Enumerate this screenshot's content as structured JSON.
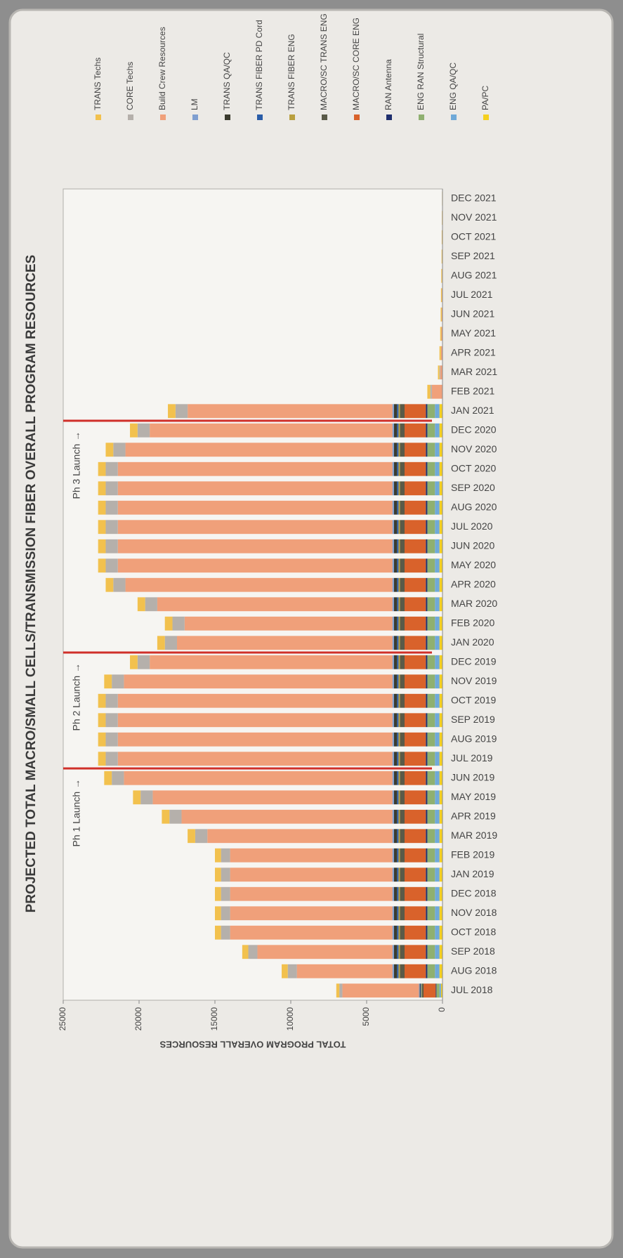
{
  "chart_data": {
    "type": "stacked_bar",
    "title": "PROJECTED TOTAL MACRO/SMALL CELLS/TRANSMISSION FIBER OVERALL PROGRAM RESOURCES",
    "y_label": "TOTAL PROGRAM OVERALL RESOURCES",
    "categories": [
      "JUL 2018",
      "AUG 2018",
      "SEP 2018",
      "OCT 2018",
      "NOV 2018",
      "DEC 2018",
      "JAN 2019",
      "FEB 2019",
      "MAR 2019",
      "APR 2019",
      "MAY 2019",
      "JUN 2019",
      "JUL 2019",
      "AUG 2019",
      "SEP 2019",
      "OCT 2019",
      "NOV 2019",
      "DEC 2019",
      "JAN 2020",
      "FEB 2020",
      "MAR 2020",
      "APR 2020",
      "MAY 2020",
      "JUN 2020",
      "JUL 2020",
      "AUG 2020",
      "SEP 2020",
      "OCT 2020",
      "NOV 2020",
      "DEC 2020",
      "JAN 2021",
      "FEB 2021",
      "MAR 2021",
      "APR 2021",
      "MAY 2021",
      "JUN 2021",
      "JUL 2021",
      "AUG 2021",
      "SEP 2021",
      "OCT 2021",
      "NOV 2021",
      "DEC 2021"
    ],
    "series": [
      {
        "name": "TRANS Techs",
        "color": "#f2c14e",
        "values": [
          200,
          400,
          400,
          400,
          400,
          400,
          400,
          400,
          500,
          500,
          500,
          500,
          500,
          500,
          500,
          500,
          500,
          500,
          500,
          500,
          500,
          500,
          500,
          500,
          500,
          500,
          500,
          500,
          500,
          500,
          500,
          200,
          100,
          100,
          80,
          70,
          60,
          50,
          40,
          30,
          20,
          20
        ]
      },
      {
        "name": "CORE Techs",
        "color": "#b5b0ab",
        "values": [
          200,
          600,
          600,
          600,
          600,
          600,
          600,
          600,
          800,
          800,
          800,
          800,
          800,
          800,
          800,
          800,
          800,
          800,
          800,
          800,
          800,
          800,
          800,
          800,
          800,
          800,
          800,
          800,
          800,
          800,
          800,
          100,
          50,
          0,
          0,
          0,
          0,
          0,
          0,
          0,
          0,
          0
        ]
      },
      {
        "name": "Build Crew Resources",
        "color": "#f0a07a",
        "values": [
          5050,
          6300,
          8900,
          10700,
          10700,
          10700,
          10700,
          10700,
          12200,
          13900,
          15800,
          17700,
          18100,
          18100,
          18100,
          18100,
          17700,
          16000,
          14200,
          13700,
          15500,
          17600,
          18100,
          18100,
          18100,
          18100,
          18100,
          18100,
          17600,
          16000,
          13500,
          700,
          150,
          100,
          70,
          50,
          40,
          30,
          20,
          20,
          20,
          10
        ]
      },
      {
        "name": "LM",
        "color": "#7f9fd0",
        "values": [
          50,
          100,
          100,
          100,
          100,
          100,
          100,
          100,
          100,
          100,
          100,
          100,
          100,
          100,
          100,
          100,
          100,
          100,
          100,
          100,
          100,
          100,
          100,
          100,
          100,
          100,
          100,
          100,
          100,
          100,
          100,
          0,
          0,
          0,
          0,
          0,
          0,
          0,
          0,
          0,
          0,
          0
        ]
      },
      {
        "name": "TRANS QA/QC",
        "color": "#3b3b2e",
        "values": [
          50,
          200,
          200,
          200,
          200,
          200,
          200,
          200,
          200,
          200,
          200,
          200,
          200,
          200,
          200,
          200,
          200,
          200,
          200,
          200,
          200,
          200,
          200,
          200,
          200,
          200,
          200,
          200,
          200,
          200,
          200,
          0,
          0,
          0,
          0,
          0,
          0,
          0,
          0,
          0,
          0,
          0
        ]
      },
      {
        "name": "TRANS FIBER PD Cord",
        "color": "#2a5da8",
        "values": [
          50,
          100,
          100,
          100,
          100,
          100,
          100,
          100,
          100,
          100,
          100,
          100,
          100,
          100,
          100,
          100,
          100,
          100,
          100,
          100,
          100,
          100,
          100,
          100,
          100,
          100,
          100,
          100,
          100,
          100,
          100,
          0,
          0,
          0,
          0,
          0,
          0,
          0,
          0,
          0,
          0,
          0
        ]
      },
      {
        "name": "TRANS FIBER ENG",
        "color": "#b9a040",
        "values": [
          50,
          100,
          100,
          100,
          100,
          100,
          100,
          100,
          100,
          100,
          100,
          100,
          100,
          100,
          100,
          100,
          100,
          100,
          100,
          100,
          100,
          100,
          100,
          100,
          100,
          100,
          100,
          100,
          100,
          100,
          100,
          0,
          0,
          0,
          0,
          0,
          0,
          0,
          0,
          0,
          0,
          0
        ]
      },
      {
        "name": "MACRO/SC TRANS ENG",
        "color": "#5a5a48",
        "values": [
          100,
          300,
          300,
          300,
          300,
          300,
          300,
          300,
          300,
          300,
          300,
          300,
          300,
          300,
          300,
          300,
          300,
          300,
          300,
          300,
          300,
          300,
          300,
          300,
          300,
          300,
          300,
          300,
          300,
          300,
          300,
          0,
          0,
          0,
          0,
          0,
          0,
          0,
          0,
          0,
          0,
          0
        ]
      },
      {
        "name": "MACRO/SC CORE ENG",
        "color": "#d9622b",
        "values": [
          800,
          1400,
          1400,
          1400,
          1400,
          1400,
          1400,
          1400,
          1400,
          1400,
          1400,
          1400,
          1400,
          1400,
          1400,
          1400,
          1400,
          1400,
          1400,
          1400,
          1400,
          1400,
          1400,
          1400,
          1400,
          1400,
          1400,
          1400,
          1400,
          1400,
          1400,
          0,
          0,
          0,
          0,
          0,
          0,
          0,
          0,
          0,
          0,
          0
        ]
      },
      {
        "name": "RAN Antenna",
        "color": "#1f2f6e",
        "values": [
          50,
          100,
          100,
          100,
          100,
          100,
          100,
          100,
          100,
          100,
          100,
          100,
          100,
          100,
          100,
          100,
          100,
          100,
          100,
          100,
          100,
          100,
          100,
          100,
          100,
          100,
          100,
          100,
          100,
          100,
          100,
          0,
          0,
          0,
          0,
          0,
          0,
          0,
          0,
          0,
          0,
          0
        ]
      },
      {
        "name": "ENG RAN Structural",
        "color": "#8fb070",
        "values": [
          200,
          500,
          500,
          500,
          500,
          500,
          500,
          500,
          500,
          500,
          500,
          500,
          500,
          500,
          500,
          500,
          500,
          500,
          500,
          500,
          500,
          500,
          500,
          500,
          500,
          500,
          500,
          500,
          500,
          500,
          500,
          0,
          0,
          0,
          0,
          0,
          0,
          0,
          0,
          0,
          0,
          0
        ]
      },
      {
        "name": "ENG QA/QC",
        "color": "#6fa9d8",
        "values": [
          100,
          300,
          300,
          300,
          300,
          300,
          300,
          300,
          300,
          300,
          300,
          300,
          300,
          300,
          300,
          300,
          300,
          300,
          300,
          300,
          300,
          300,
          300,
          300,
          300,
          300,
          300,
          300,
          300,
          300,
          300,
          0,
          0,
          0,
          0,
          0,
          0,
          0,
          0,
          0,
          0,
          0
        ]
      },
      {
        "name": "PA/PC",
        "color": "#f5d020",
        "values": [
          100,
          200,
          200,
          200,
          200,
          200,
          200,
          200,
          200,
          200,
          200,
          200,
          200,
          200,
          200,
          200,
          200,
          200,
          200,
          200,
          200,
          200,
          200,
          200,
          200,
          200,
          200,
          200,
          200,
          200,
          200,
          0,
          0,
          0,
          0,
          0,
          0,
          0,
          0,
          0,
          0,
          0
        ]
      }
    ],
    "ylim": [
      0,
      25000
    ],
    "yticks": [
      0,
      5000,
      10000,
      15000,
      20000,
      25000
    ],
    "grid": false,
    "legend": "right",
    "annotations": [
      {
        "text": "Ph 1 Launch →",
        "x": "JUL 2019",
        "color": "#d0302a"
      },
      {
        "text": "Ph 2 Launch →",
        "x": "JAN 2020",
        "color": "#d0302a"
      },
      {
        "text": "Ph 3 Launch →",
        "x": "JAN 2021",
        "color": "#d0302a"
      }
    ]
  }
}
